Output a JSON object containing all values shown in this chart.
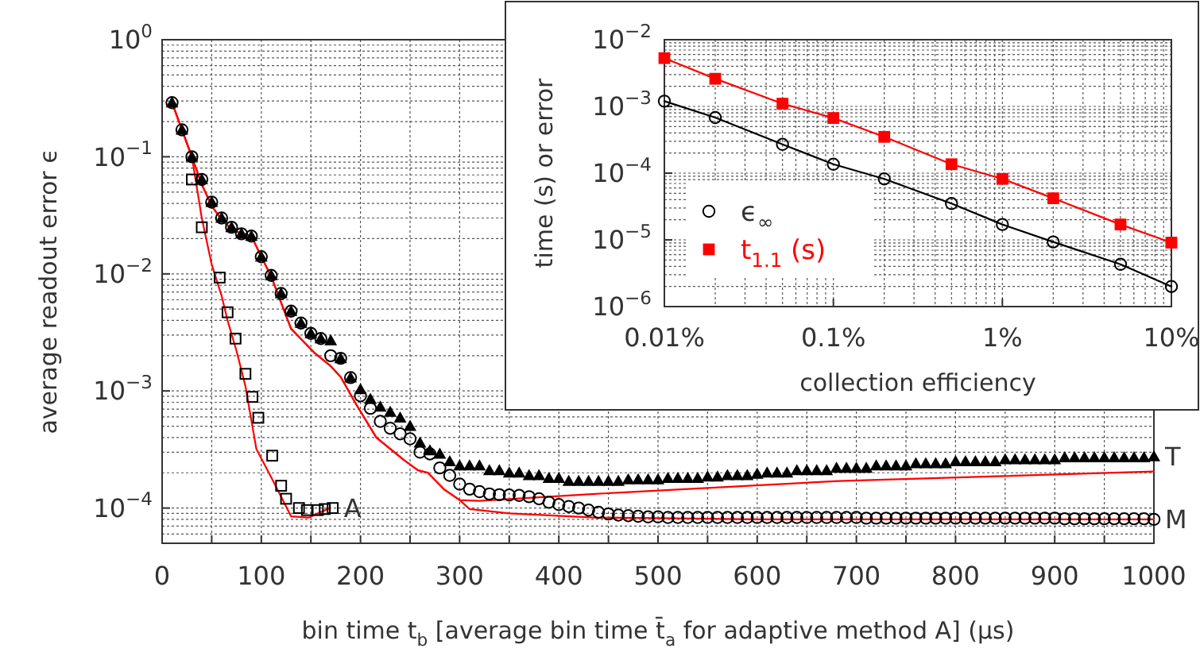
{
  "chart_data": [
    {
      "type": "scatter",
      "xlabel": "bin time t$_{b}$ [average bin time t̄$_{a}$ for adaptive method A] (μs)",
      "ylabel": "average readout error ϵ",
      "log": "y",
      "grid": true,
      "xlim": [
        0,
        1000
      ],
      "ylim": [
        5e-05,
        1
      ],
      "xticks": [
        0,
        {
          "value": 50,
          "label": null
        },
        100,
        {
          "value": 150,
          "label": null
        },
        200,
        {
          "value": 250,
          "label": null
        },
        300,
        {
          "value": 350,
          "label": null
        },
        400,
        {
          "value": 450,
          "label": null
        },
        500,
        {
          "value": 550,
          "label": null
        },
        600,
        {
          "value": 650,
          "label": null
        },
        700,
        {
          "value": 750,
          "label": null
        },
        800,
        {
          "value": 850,
          "label": null
        },
        900,
        {
          "value": 950,
          "label": null
        },
        1000
      ],
      "yticks": [
        {
          "value": 1,
          "label": "10$^{0}$"
        },
        {
          "value": 0.1,
          "label": "10$^{−1}$"
        },
        {
          "value": 0.01,
          "label": "10$^{−2}$"
        },
        {
          "value": 0.001,
          "label": "10$^{−3}$"
        },
        {
          "value": 0.0001,
          "label": "10$^{−4}$"
        }
      ],
      "x": [
        10,
        20,
        30,
        40,
        50,
        60,
        70,
        80,
        90,
        100,
        110,
        120,
        130,
        140,
        150,
        160,
        170,
        180,
        190,
        200,
        210,
        220,
        230,
        240,
        250,
        260,
        270,
        280,
        290,
        300,
        310,
        320,
        330,
        340,
        350,
        360,
        370,
        380,
        390,
        400,
        410,
        420,
        430,
        440,
        450,
        460,
        470,
        480,
        490,
        500,
        510,
        520,
        530,
        540,
        550,
        560,
        570,
        580,
        590,
        600,
        610,
        620,
        630,
        640,
        650,
        660,
        670,
        680,
        690,
        700,
        710,
        720,
        730,
        740,
        750,
        760,
        770,
        780,
        790,
        800,
        810,
        820,
        830,
        840,
        850,
        860,
        870,
        880,
        890,
        900,
        910,
        920,
        930,
        940,
        950,
        960,
        970,
        980,
        990,
        1000
      ],
      "series": [
        {
          "type": "line",
          "color": "#ff0000",
          "marker": "none",
          "x": [
            10,
            20,
            30,
            40,
            50,
            60,
            66,
            75,
            84,
            95,
            112,
            130,
            148,
            169
          ],
          "values": [
            0.29,
            0.17,
            0.1,
            0.03,
            0.012,
            0.0065,
            0.004,
            0.0022,
            0.0011,
            0.00032,
            0.00017,
            8.5e-05,
            8.3e-05,
            0.0001
          ]
        },
        {
          "type": "line",
          "color": "#ff0000",
          "marker": "none",
          "x": [
            10,
            20,
            30,
            40,
            50,
            60,
            70,
            80,
            90,
            100,
            110,
            130,
            154,
            169,
            180,
            196,
            216,
            243,
            258,
            268,
            284,
            300,
            320,
            436,
            682,
            1000
          ],
          "values": [
            0.29,
            0.17,
            0.1,
            0.058,
            0.038,
            0.029,
            0.024,
            0.022,
            0.021,
            0.014,
            0.0095,
            0.0034,
            0.0021,
            0.00166,
            0.00132,
            0.00076,
            0.0004,
            0.00026,
            0.00021,
            0.0002,
            0.000145,
            0.000117,
            0.000115,
            0.000132,
            0.00017,
            0.000205
          ]
        },
        {
          "type": "line",
          "color": "#ff0000",
          "marker": "none",
          "x": [
            10,
            20,
            30,
            40,
            50,
            60,
            70,
            80,
            90,
            100,
            110,
            130,
            154,
            169,
            180,
            196,
            216,
            243,
            258,
            268,
            284,
            300,
            310,
            350,
            436,
            600,
            1000
          ],
          "values": [
            0.29,
            0.17,
            0.1,
            0.058,
            0.038,
            0.029,
            0.024,
            0.022,
            0.021,
            0.014,
            0.0095,
            0.0034,
            0.0021,
            0.00166,
            0.00132,
            0.00076,
            0.0004,
            0.00026,
            0.00021,
            0.0002,
            0.000145,
            0.000117,
            9.8e-05,
            9e-05,
            8.3e-05,
            8e-05,
            8e-05
          ]
        },
        {
          "name": "A",
          "color": "#000000",
          "marker": "square",
          "x": [
            30,
            40,
            58,
            66,
            74,
            84,
            91,
            97,
            111,
            120,
            125,
            138,
            146,
            157,
            164,
            172
          ],
          "values": [
            0.064,
            0.025,
            0.0093,
            0.0047,
            0.0028,
            0.0014,
            0.00089,
            0.00059,
            0.00028,
            0.000155,
            0.00012,
            0.0001,
            9.6e-05,
            9.6e-05,
            9.8e-05,
            0.0001
          ]
        },
        {
          "name": "M",
          "color": "#000000",
          "marker": "circle",
          "values": [
            0.29,
            0.17,
            0.1,
            0.064,
            0.041,
            0.03,
            0.025,
            0.022,
            0.021,
            0.014,
            0.0097,
            0.0068,
            0.0048,
            0.0038,
            0.0031,
            0.0028,
            0.002,
            0.0019,
            0.0013,
            0.00091,
            0.00071,
            0.00055,
            0.00048,
            0.00043,
            0.00039,
            0.0003,
            0.00029,
            0.00022,
            0.00019,
            0.00016,
            0.000145,
            0.000138,
            0.000132,
            0.00013,
            0.000129,
            0.000128,
            0.000125,
            0.00012,
            0.000112,
            0.000107,
            0.000103,
            0.0001,
            9.6e-05,
            9.2e-05,
            8.9e-05,
            8.7e-05,
            8.6e-05,
            8.5e-05,
            8.4e-05,
            8.4e-05,
            8.3e-05,
            8.3e-05,
            8.3e-05,
            8.3e-05,
            8.3e-05,
            8.3e-05,
            8.3e-05,
            8.3e-05,
            8.3e-05,
            8.3e-05,
            8.3e-05,
            8.3e-05,
            8.3e-05,
            8.3e-05,
            8.3e-05,
            8.3e-05,
            8.3e-05,
            8.3e-05,
            8.3e-05,
            8.3e-05,
            8.2e-05,
            8.2e-05,
            8.2e-05,
            8.2e-05,
            8.2e-05,
            8.2e-05,
            8.2e-05,
            8.2e-05,
            8.2e-05,
            8.2e-05,
            8.2e-05,
            8.2e-05,
            8.2e-05,
            8.2e-05,
            8.2e-05,
            8.2e-05,
            8.2e-05,
            8.2e-05,
            8.2e-05,
            8.2e-05,
            8.1e-05,
            8.1e-05,
            8.1e-05,
            8.1e-05,
            8.1e-05,
            8.1e-05,
            8.1e-05,
            8.1e-05,
            8.1e-05,
            8e-05
          ]
        },
        {
          "name": "T",
          "color": "#000000",
          "marker": "triangle",
          "values": [
            0.29,
            0.17,
            0.1,
            0.064,
            0.041,
            0.03,
            0.025,
            0.022,
            0.021,
            0.014,
            0.0097,
            0.0068,
            0.0048,
            0.0038,
            0.0031,
            0.0028,
            0.0027,
            0.0019,
            0.0013,
            0.00103,
            0.00085,
            0.00073,
            0.00066,
            0.00059,
            0.0005,
            0.00036,
            0.00031,
            0.00029,
            0.00025,
            0.00023,
            0.00023,
            0.00023,
            0.00021,
            0.00021,
            0.0002,
            0.0002,
            0.00019,
            0.00019,
            0.00018,
            0.00018,
            0.00017,
            0.00017,
            0.00017,
            0.00017,
            0.00017,
            0.00017,
            0.000175,
            0.000175,
            0.000175,
            0.000175,
            0.00018,
            0.00018,
            0.00018,
            0.00018,
            0.000185,
            0.000185,
            0.00019,
            0.00019,
            0.00019,
            0.000195,
            0.0002,
            0.0002,
            0.0002,
            0.00021,
            0.00021,
            0.00021,
            0.00021,
            0.00022,
            0.00022,
            0.00022,
            0.00022,
            0.00023,
            0.00023,
            0.00023,
            0.00023,
            0.00024,
            0.00024,
            0.00024,
            0.00024,
            0.00025,
            0.00025,
            0.00025,
            0.00025,
            0.00025,
            0.00026,
            0.00026,
            0.00026,
            0.00026,
            0.00026,
            0.00026,
            0.00027,
            0.00027,
            0.00027,
            0.00027,
            0.00027,
            0.00027,
            0.00027,
            0.00027,
            0.00027,
            0.000275
          ]
        }
      ]
    },
    {
      "type": "line",
      "xlabel": "collection efficiency",
      "ylabel": "time (s) or error",
      "log": "xy",
      "grid": true,
      "legend": "bottom left",
      "xlim": [
        0.01,
        10
      ],
      "ylim": [
        1e-06,
        0.01
      ],
      "xticks": [
        {
          "value": 0.01,
          "label": "0.01%"
        },
        {
          "value": 0.1,
          "label": "0.1%"
        },
        {
          "value": 1,
          "label": "1%"
        },
        {
          "value": 10,
          "label": "10%"
        }
      ],
      "yticks": [
        {
          "value": 0.01,
          "label": "10$^{−2}$"
        },
        {
          "value": 0.001,
          "label": "10$^{−3}$"
        },
        {
          "value": 0.0001,
          "label": "10$^{−4}$"
        },
        {
          "value": 1e-05,
          "label": "10$^{−5}$"
        },
        {
          "value": 1e-06,
          "label": "10$^{−6}$"
        }
      ],
      "x": [
        0.01,
        0.02,
        0.05,
        0.1,
        0.2,
        0.5,
        1,
        2,
        5,
        10
      ],
      "series": [
        {
          "name": "ϵ$_{∞}$",
          "color": "#000000",
          "marker": "circle",
          "values": [
            0.0012,
            0.00068,
            0.00027,
            0.000136,
            8.2e-05,
            3.5e-05,
            1.7e-05,
            9.3e-06,
            4.3e-06,
            2e-06
          ]
        },
        {
          "name": "t$_{1.1}$ (s)",
          "color": "#ff0000",
          "marker": "square",
          "values": [
            0.0053,
            0.0026,
            0.0011,
            0.00067,
            0.00035,
            0.000136,
            8.2e-05,
            4.2e-05,
            1.7e-05,
            9.1e-06
          ]
        }
      ]
    }
  ]
}
